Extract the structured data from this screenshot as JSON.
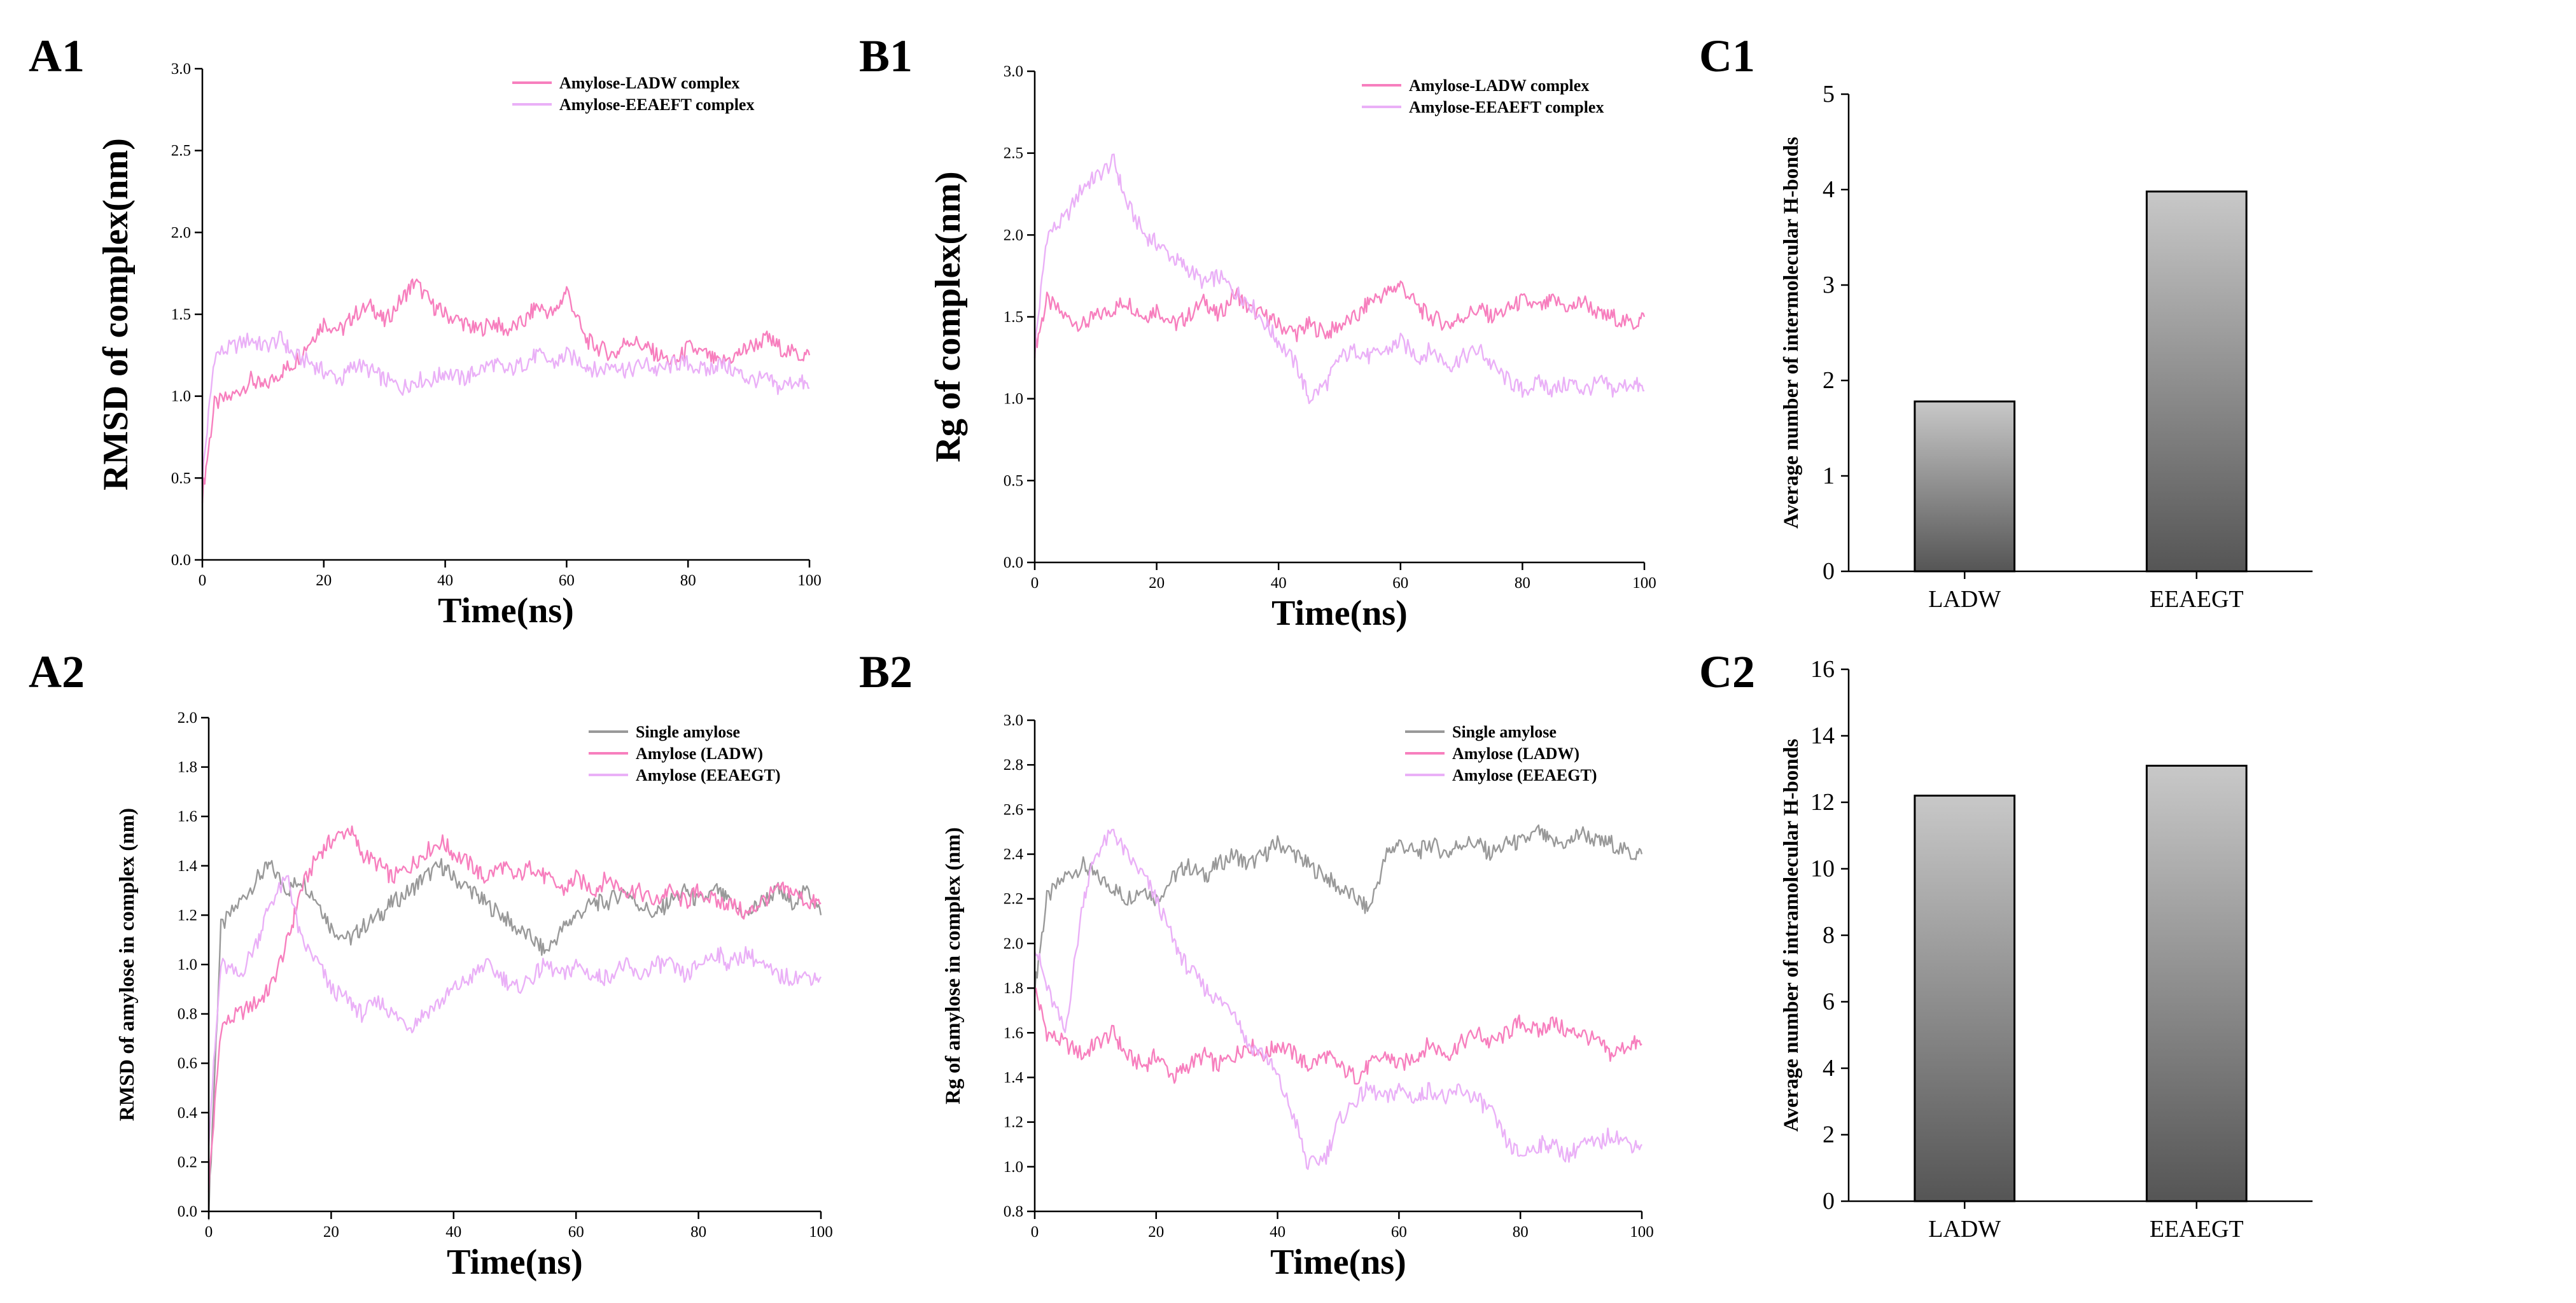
{
  "chart_data": [
    {
      "panel": "A1",
      "type": "line",
      "xlabel": "Time(ns)",
      "ylabel": "RMSD of complex(nm)",
      "xlim": [
        0,
        100
      ],
      "ylim": [
        0,
        3.0
      ],
      "xticks": [
        0,
        20,
        40,
        60,
        80,
        100
      ],
      "yticks": [
        "0.0",
        "0.5",
        "1.0",
        "1.5",
        "2.0",
        "2.5",
        "3.0"
      ],
      "legend_position": "top-right",
      "series": [
        {
          "name": "Amylose-LADW complex",
          "color": "#f77fbe",
          "x": [
            0,
            2,
            5,
            8,
            10,
            13,
            15,
            18,
            20,
            23,
            25,
            28,
            30,
            33,
            35,
            38,
            40,
            43,
            45,
            48,
            50,
            53,
            55,
            58,
            60,
            63,
            65,
            68,
            70,
            73,
            75,
            78,
            80,
            83,
            85,
            88,
            90,
            93,
            95,
            98,
            100
          ],
          "y": [
            0.4,
            0.95,
            1.0,
            1.1,
            1.05,
            1.15,
            1.2,
            1.35,
            1.45,
            1.4,
            1.5,
            1.55,
            1.45,
            1.6,
            1.7,
            1.55,
            1.5,
            1.45,
            1.4,
            1.45,
            1.4,
            1.45,
            1.55,
            1.5,
            1.65,
            1.35,
            1.3,
            1.25,
            1.35,
            1.3,
            1.25,
            1.2,
            1.3,
            1.25,
            1.2,
            1.25,
            1.3,
            1.35,
            1.3,
            1.25,
            1.25
          ]
        },
        {
          "name": "Amylose-EEAEFT complex",
          "color": "#eab0f7",
          "x": [
            0,
            2,
            5,
            8,
            10,
            13,
            15,
            18,
            20,
            23,
            25,
            28,
            30,
            33,
            35,
            38,
            40,
            43,
            45,
            48,
            50,
            53,
            55,
            58,
            60,
            63,
            65,
            68,
            70,
            73,
            75,
            78,
            80,
            83,
            85,
            88,
            90,
            93,
            95,
            98,
            100
          ],
          "y": [
            0.5,
            1.25,
            1.3,
            1.35,
            1.3,
            1.35,
            1.25,
            1.2,
            1.15,
            1.1,
            1.2,
            1.15,
            1.1,
            1.05,
            1.1,
            1.1,
            1.15,
            1.1,
            1.15,
            1.2,
            1.15,
            1.2,
            1.25,
            1.2,
            1.25,
            1.2,
            1.15,
            1.2,
            1.15,
            1.2,
            1.15,
            1.2,
            1.2,
            1.15,
            1.2,
            1.15,
            1.1,
            1.1,
            1.05,
            1.1,
            1.05
          ]
        }
      ]
    },
    {
      "panel": "B1",
      "type": "line",
      "xlabel": "Time(ns)",
      "ylabel": "Rg of complex(nm)",
      "xlim": [
        0,
        100
      ],
      "ylim": [
        0,
        3.0
      ],
      "xticks": [
        0,
        20,
        40,
        60,
        80,
        100
      ],
      "yticks": [
        "0.0",
        "0.5",
        "1.0",
        "1.5",
        "2.0",
        "2.5",
        "3.0"
      ],
      "legend_position": "top-right",
      "series": [
        {
          "name": "Amylose-LADW complex",
          "color": "#f77fbe",
          "x": [
            0,
            2,
            5,
            8,
            10,
            13,
            15,
            18,
            20,
            23,
            25,
            28,
            30,
            33,
            35,
            38,
            40,
            43,
            45,
            48,
            50,
            53,
            55,
            58,
            60,
            63,
            65,
            68,
            70,
            73,
            75,
            78,
            80,
            83,
            85,
            88,
            90,
            93,
            95,
            98,
            100
          ],
          "y": [
            1.3,
            1.6,
            1.5,
            1.45,
            1.5,
            1.55,
            1.6,
            1.5,
            1.55,
            1.45,
            1.5,
            1.6,
            1.5,
            1.65,
            1.55,
            1.5,
            1.45,
            1.4,
            1.45,
            1.4,
            1.45,
            1.5,
            1.6,
            1.65,
            1.7,
            1.55,
            1.5,
            1.45,
            1.5,
            1.55,
            1.5,
            1.55,
            1.6,
            1.55,
            1.6,
            1.55,
            1.6,
            1.5,
            1.5,
            1.45,
            1.5
          ]
        },
        {
          "name": "Amylose-EEAEFT complex",
          "color": "#eab0f7",
          "x": [
            0,
            2,
            5,
            8,
            10,
            13,
            15,
            18,
            20,
            23,
            25,
            28,
            30,
            33,
            35,
            38,
            40,
            43,
            45,
            48,
            50,
            53,
            55,
            58,
            60,
            63,
            65,
            68,
            70,
            73,
            75,
            78,
            80,
            83,
            85,
            88,
            90,
            93,
            95,
            98,
            100
          ],
          "y": [
            1.3,
            2.0,
            2.1,
            2.3,
            2.35,
            2.45,
            2.2,
            2.0,
            1.95,
            1.85,
            1.8,
            1.7,
            1.75,
            1.65,
            1.6,
            1.45,
            1.35,
            1.2,
            1.0,
            1.1,
            1.25,
            1.3,
            1.25,
            1.3,
            1.35,
            1.25,
            1.3,
            1.2,
            1.25,
            1.3,
            1.2,
            1.1,
            1.05,
            1.1,
            1.05,
            1.1,
            1.05,
            1.1,
            1.05,
            1.1,
            1.05
          ]
        }
      ]
    },
    {
      "panel": "A2",
      "type": "line",
      "xlabel": "Time(ns)",
      "ylabel": "RMSD of amylose in complex (nm)",
      "xlim": [
        0,
        100
      ],
      "ylim": [
        0,
        2.0
      ],
      "xticks": [
        0,
        20,
        40,
        60,
        80,
        100
      ],
      "yticks": [
        "0.0",
        "0.2",
        "0.4",
        "0.6",
        "0.8",
        "1.0",
        "1.2",
        "1.4",
        "1.6",
        "1.8",
        "2.0"
      ],
      "legend_position": "top-right",
      "series": [
        {
          "name": "Single amylose",
          "color": "#999999",
          "x": [
            0,
            2,
            5,
            8,
            10,
            13,
            15,
            18,
            20,
            23,
            25,
            28,
            30,
            33,
            35,
            38,
            40,
            43,
            45,
            48,
            50,
            53,
            55,
            58,
            60,
            63,
            65,
            68,
            70,
            73,
            75,
            78,
            80,
            83,
            85,
            88,
            90,
            93,
            95,
            98,
            100
          ],
          "y": [
            0.0,
            1.15,
            1.25,
            1.35,
            1.4,
            1.3,
            1.35,
            1.25,
            1.15,
            1.1,
            1.15,
            1.2,
            1.25,
            1.3,
            1.35,
            1.4,
            1.35,
            1.3,
            1.25,
            1.2,
            1.15,
            1.1,
            1.05,
            1.15,
            1.2,
            1.25,
            1.25,
            1.3,
            1.25,
            1.2,
            1.25,
            1.3,
            1.25,
            1.3,
            1.25,
            1.2,
            1.25,
            1.3,
            1.25,
            1.3,
            1.2
          ]
        },
        {
          "name": "Amylose (LADW)",
          "color": "#f77fbe",
          "x": [
            0,
            2,
            5,
            8,
            10,
            13,
            15,
            18,
            20,
            23,
            25,
            28,
            30,
            33,
            35,
            38,
            40,
            43,
            45,
            48,
            50,
            53,
            55,
            58,
            60,
            63,
            65,
            68,
            70,
            73,
            75,
            78,
            80,
            83,
            85,
            88,
            90,
            93,
            95,
            98,
            100
          ],
          "y": [
            0.1,
            0.75,
            0.8,
            0.85,
            0.9,
            1.1,
            1.3,
            1.45,
            1.5,
            1.55,
            1.45,
            1.4,
            1.35,
            1.4,
            1.45,
            1.5,
            1.45,
            1.4,
            1.35,
            1.4,
            1.35,
            1.4,
            1.35,
            1.3,
            1.35,
            1.3,
            1.35,
            1.3,
            1.3,
            1.25,
            1.3,
            1.25,
            1.3,
            1.25,
            1.25,
            1.2,
            1.25,
            1.3,
            1.3,
            1.25,
            1.25
          ]
        },
        {
          "name": "Amylose (EEAEGT)",
          "color": "#eab0f7",
          "x": [
            0,
            2,
            5,
            8,
            10,
            13,
            15,
            18,
            20,
            23,
            25,
            28,
            30,
            33,
            35,
            38,
            40,
            43,
            45,
            48,
            50,
            53,
            55,
            58,
            60,
            63,
            65,
            68,
            70,
            73,
            75,
            78,
            80,
            83,
            85,
            88,
            90,
            93,
            95,
            98,
            100
          ],
          "y": [
            0.3,
            1.0,
            0.95,
            1.1,
            1.25,
            1.35,
            1.1,
            1.0,
            0.9,
            0.85,
            0.8,
            0.85,
            0.8,
            0.75,
            0.8,
            0.85,
            0.9,
            0.95,
            1.0,
            0.95,
            0.9,
            0.95,
            1.0,
            0.95,
            1.0,
            0.95,
            0.95,
            1.0,
            0.95,
            1.0,
            1.0,
            0.95,
            1.0,
            1.05,
            1.0,
            1.05,
            1.0,
            0.95,
            0.95,
            0.95,
            0.95
          ]
        }
      ]
    },
    {
      "panel": "B2",
      "type": "line",
      "xlabel": "Time(ns)",
      "ylabel": "Rg of amylose in complex (nm)",
      "xlim": [
        0,
        100
      ],
      "ylim": [
        0.8,
        3.0
      ],
      "xticks": [
        0,
        20,
        40,
        60,
        80,
        100
      ],
      "yticks": [
        "0.8",
        "1.0",
        "1.2",
        "1.4",
        "1.6",
        "1.8",
        "2.0",
        "2.2",
        "2.4",
        "2.6",
        "2.8",
        "3.0"
      ],
      "legend_position": "top-right",
      "series": [
        {
          "name": "Single amylose",
          "color": "#999999",
          "x": [
            0,
            2,
            5,
            8,
            10,
            13,
            15,
            18,
            20,
            23,
            25,
            28,
            30,
            33,
            35,
            38,
            40,
            43,
            45,
            48,
            50,
            53,
            55,
            58,
            60,
            63,
            65,
            68,
            70,
            73,
            75,
            78,
            80,
            83,
            85,
            88,
            90,
            93,
            95,
            98,
            100
          ],
          "y": [
            1.8,
            2.2,
            2.3,
            2.35,
            2.3,
            2.25,
            2.2,
            2.25,
            2.2,
            2.3,
            2.35,
            2.3,
            2.35,
            2.4,
            2.35,
            2.4,
            2.45,
            2.4,
            2.35,
            2.3,
            2.25,
            2.2,
            2.15,
            2.4,
            2.45,
            2.4,
            2.45,
            2.4,
            2.45,
            2.45,
            2.4,
            2.45,
            2.45,
            2.5,
            2.45,
            2.45,
            2.5,
            2.45,
            2.45,
            2.4,
            2.4
          ]
        },
        {
          "name": "Amylose (LADW)",
          "color": "#f77fbe",
          "x": [
            0,
            2,
            5,
            8,
            10,
            13,
            15,
            18,
            20,
            23,
            25,
            28,
            30,
            33,
            35,
            38,
            40,
            43,
            45,
            48,
            50,
            53,
            55,
            58,
            60,
            63,
            65,
            68,
            70,
            73,
            75,
            78,
            80,
            83,
            85,
            88,
            90,
            93,
            95,
            98,
            100
          ],
          "y": [
            1.8,
            1.6,
            1.55,
            1.5,
            1.55,
            1.6,
            1.5,
            1.45,
            1.5,
            1.4,
            1.45,
            1.5,
            1.45,
            1.5,
            1.55,
            1.5,
            1.55,
            1.5,
            1.45,
            1.5,
            1.45,
            1.4,
            1.45,
            1.5,
            1.45,
            1.5,
            1.55,
            1.5,
            1.55,
            1.6,
            1.55,
            1.6,
            1.65,
            1.6,
            1.65,
            1.6,
            1.6,
            1.55,
            1.5,
            1.55,
            1.55
          ]
        },
        {
          "name": "Amylose (EEAEGT)",
          "color": "#eab0f7",
          "x": [
            0,
            2,
            5,
            8,
            10,
            13,
            15,
            18,
            20,
            23,
            25,
            28,
            30,
            33,
            35,
            38,
            40,
            43,
            45,
            48,
            50,
            53,
            55,
            58,
            60,
            63,
            65,
            68,
            70,
            73,
            75,
            78,
            80,
            83,
            85,
            88,
            90,
            93,
            95,
            98,
            100
          ],
          "y": [
            2.0,
            1.8,
            1.6,
            2.2,
            2.4,
            2.5,
            2.4,
            2.3,
            2.2,
            2.0,
            1.9,
            1.8,
            1.75,
            1.7,
            1.55,
            1.5,
            1.4,
            1.2,
            1.0,
            1.05,
            1.2,
            1.3,
            1.35,
            1.3,
            1.35,
            1.3,
            1.35,
            1.3,
            1.35,
            1.3,
            1.25,
            1.1,
            1.05,
            1.1,
            1.1,
            1.05,
            1.1,
            1.1,
            1.15,
            1.1,
            1.1
          ]
        }
      ]
    },
    {
      "panel": "C1",
      "type": "bar",
      "ylabel": "Average number of intermolecular H-bonds",
      "categories": [
        "LADW",
        "EEAEGT"
      ],
      "values": [
        1.78,
        3.98
      ],
      "ylim": [
        0,
        5
      ],
      "yticks": [
        "0",
        "1",
        "2",
        "3",
        "4",
        "5"
      ]
    },
    {
      "panel": "C2",
      "type": "bar",
      "ylabel": "Average number of intramolecular H-bonds",
      "categories": [
        "LADW",
        "EEAEGT"
      ],
      "values": [
        12.2,
        13.1
      ],
      "ylim": [
        0,
        16
      ],
      "yticks": [
        "0",
        "2",
        "4",
        "6",
        "8",
        "10",
        "12",
        "14",
        "16"
      ]
    }
  ]
}
